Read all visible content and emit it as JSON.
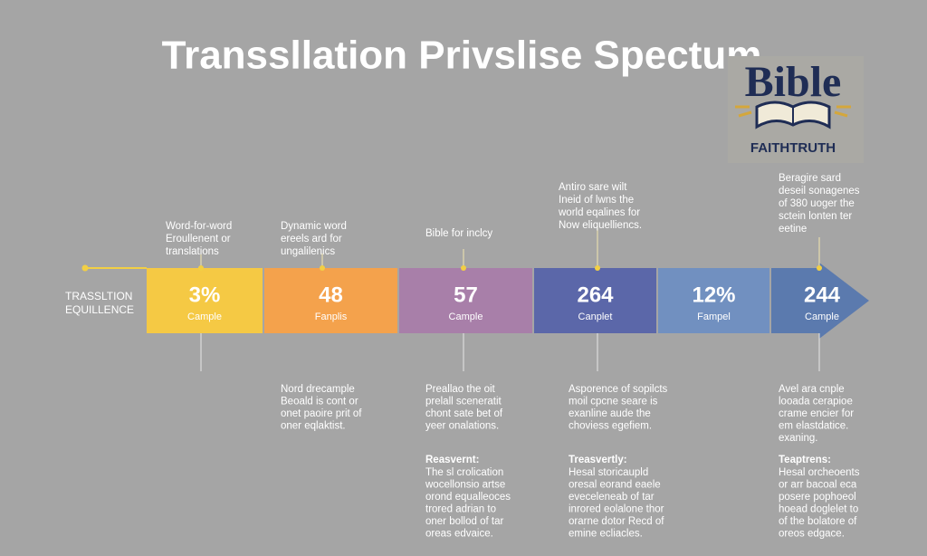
{
  "title": "Transsllation Privslise Spectum",
  "logo": {
    "word": "Bible",
    "tagline": "FAITHTRUTH"
  },
  "axis_label": [
    "TRASSLTION",
    "EQUILLENCE"
  ],
  "segments": [
    {
      "value": "3%",
      "label": "Cample"
    },
    {
      "value": "48",
      "label": "Fanplis"
    },
    {
      "value": "57",
      "label": "Cample"
    },
    {
      "value": "264",
      "label": "Canplet"
    },
    {
      "value": "12%",
      "label": "Fampel"
    },
    {
      "value": "244",
      "label": "Cample"
    }
  ],
  "top_notes": [
    {
      "lines": [
        "Word-for-word",
        "Eroullenent or",
        "translations"
      ]
    },
    {
      "lines": [
        "Dynamic word",
        "ereels ard for",
        "ungalilenics"
      ]
    },
    {
      "lines": [
        "Bible for inclcy"
      ]
    },
    {
      "lines": [
        "Antiro sare wilt",
        "Ineid of lwns the",
        "world eqalines for",
        "Now eliquelliencs."
      ]
    },
    {
      "lines": [
        "Beragire sard",
        "deseil sonagenes",
        "of 380 uoger the",
        "sctein lonten ter",
        "eetine"
      ]
    }
  ],
  "bottom_notes": [
    {
      "lines": [
        "Nord drecample",
        "Beoald is cont or",
        "onet paoire prit of",
        "oner eqlaktist."
      ]
    },
    {
      "lines": [
        "Preallao the oit",
        "prelall sceneratit",
        "chont sate bet of",
        "yeer onalations."
      ],
      "heading": "Reasvernt:",
      "detail": [
        "The sl crolication",
        "wocellonsio artse",
        "orond equalleoces",
        "trored adrian to",
        "oner bollod of tar",
        "oreas edvaice."
      ]
    },
    {
      "lines": [
        "Asporence of sopilcts",
        "moil cpcne seare is",
        "exanline aude the",
        "choviess egefiem."
      ],
      "heading": "Treasvertly:",
      "detail": [
        "Hesal storicaupld",
        "oresal eorand eaele",
        "eveceleneab of tar",
        "inrored eolalone thor",
        "orarne dotor Recd of",
        "emine ecliacles."
      ]
    },
    {
      "lines": [
        "Avel ara cnple",
        "looada cerapioe",
        "crame encier for",
        "em elastdatice.",
        "exaning."
      ],
      "heading": "Teaptrens:",
      "detail": [
        "Hesal orcheoents",
        "or arr bacoal eca",
        "posere pophoeol",
        "hoead doglelet to",
        "of the bolatore of",
        "oreos edgace."
      ]
    }
  ]
}
